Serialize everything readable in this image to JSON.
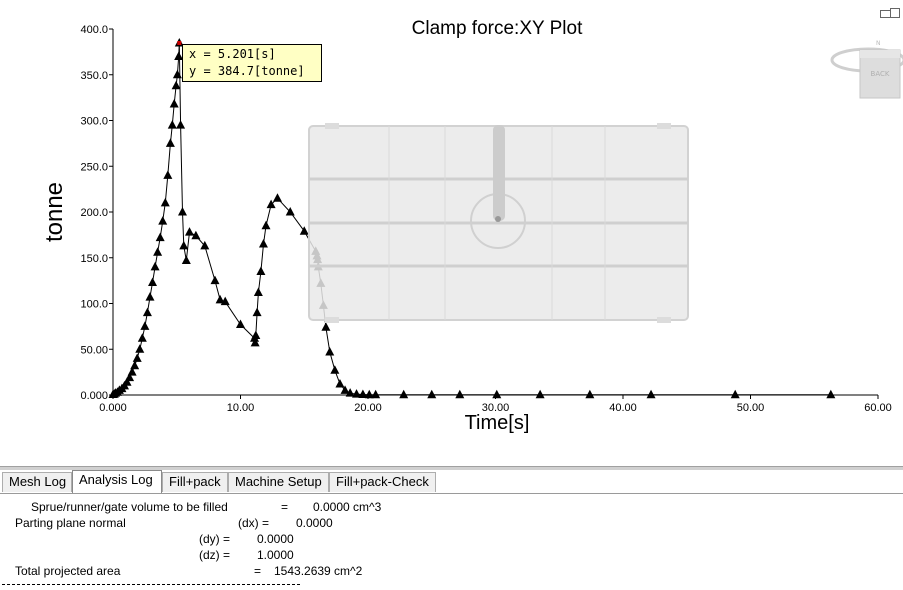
{
  "chart_data": {
    "type": "line",
    "title": "Clamp force:XY Plot",
    "xlabel": "Time[s]",
    "ylabel": "tonne",
    "xlim": [
      0,
      60
    ],
    "ylim": [
      0,
      400
    ],
    "x_ticks": [
      "0.000",
      "10.00",
      "20.00",
      "30.00",
      "40.00",
      "50.00",
      "60.00"
    ],
    "y_ticks": [
      "0.000",
      "50.00",
      "100.0",
      "150.0",
      "200.0",
      "250.0",
      "300.0",
      "350.0",
      "400.0"
    ],
    "grid": false,
    "marker": "triangle",
    "series": [
      {
        "x": [
          0.0,
          0.1,
          0.2,
          0.35,
          0.5,
          0.7,
          0.9,
          1.1,
          1.3,
          1.5,
          1.7,
          1.9,
          2.1,
          2.3,
          2.5,
          2.7,
          2.9,
          3.1,
          3.3,
          3.5,
          3.7,
          3.9,
          4.1,
          4.3,
          4.5,
          4.65,
          4.8,
          4.95,
          5.05,
          5.15,
          5.201,
          5.3,
          5.45,
          5.55,
          5.75,
          6.0,
          6.5,
          7.2,
          8.0,
          8.4,
          8.8,
          10.0,
          11.1,
          11.15,
          11.2,
          11.3,
          11.4,
          11.6,
          11.8,
          12.0,
          12.4,
          12.9,
          13.9,
          15.0,
          15.9,
          16.0,
          16.05,
          16.1,
          16.3,
          16.5,
          16.7,
          17.0,
          17.4,
          17.8,
          18.2,
          18.6,
          19.1,
          19.6,
          20.1,
          20.6,
          22.8,
          25.0,
          27.2,
          30.1,
          33.5,
          37.4,
          42.2,
          48.8,
          56.3
        ],
        "y": [
          0.5,
          1,
          2,
          3,
          5,
          7,
          10,
          14,
          19,
          25,
          32,
          40,
          50,
          62,
          75,
          90,
          107,
          123,
          140,
          156,
          172,
          190,
          210,
          240,
          275,
          295,
          318,
          338,
          350,
          370,
          384.7,
          295,
          200,
          163,
          147,
          178,
          174,
          163,
          125,
          104,
          102,
          77,
          62,
          57,
          65,
          90,
          112,
          135,
          165,
          185,
          208,
          215,
          200,
          179,
          157,
          152,
          148,
          140,
          122,
          98,
          74,
          47,
          27,
          12,
          5,
          2,
          1,
          0.5,
          0.3,
          0.3,
          0.3,
          0.3,
          0.3,
          0.3,
          0.3,
          0.3,
          0.3,
          0.3,
          0.3
        ]
      }
    ],
    "tooltip": {
      "x_text": "x = 5.201[s]",
      "y_text": "y = 384.7[tonne]",
      "x": 5.201,
      "y": 384.7
    }
  },
  "tabs": [
    {
      "label": "Mesh Log"
    },
    {
      "label": "Analysis Log"
    },
    {
      "label": "Fill+pack"
    },
    {
      "label": "Machine Setup"
    },
    {
      "label": "Fill+pack-Check"
    }
  ],
  "log": {
    "sprue_label": "Sprue/runner/gate volume to be filled",
    "sprue_eq": "=",
    "sprue_value": "0.0000 cm^3",
    "parting_label": "Parting plane normal",
    "dx_label": "(dx) =",
    "dx_value": "0.0000",
    "dy_label": "(dy) =",
    "dy_value": "0.0000",
    "dz_label": "(dz) =",
    "dz_value": "1.0000",
    "area_label": "Total projected area",
    "area_eq": "=",
    "area_value": "1543.2639 cm^2"
  },
  "colors": {
    "line": "#000000",
    "tooltip_bg": "#ffffc4",
    "overlay_fill": "#e6e6e6",
    "highlight_marker": "#cc0000"
  }
}
